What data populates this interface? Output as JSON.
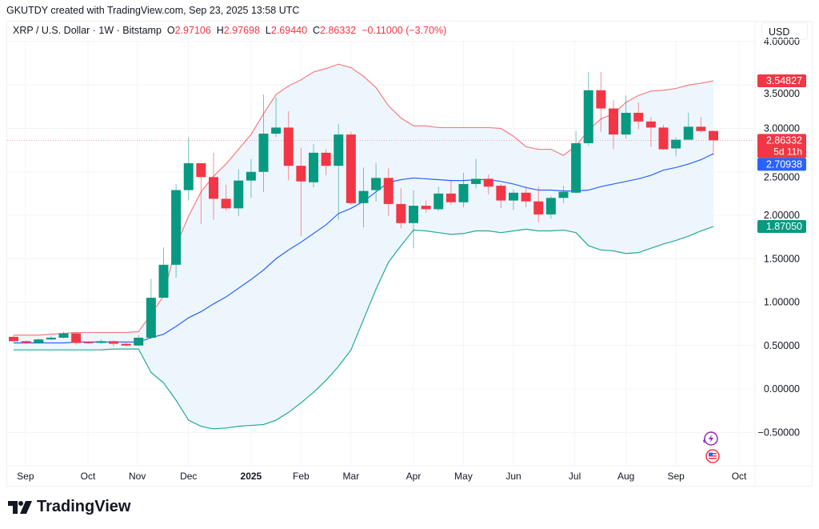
{
  "header": {
    "text": "GKUTDY created with TradingView.com, Sep 23, 2025 13:58 UTC"
  },
  "legend": {
    "symbol": "XRP / U.S. Dollar · 1W · Bitstamp",
    "o_label": "O",
    "o": "2.97106",
    "h_label": "H",
    "h": "2.97698",
    "l_label": "L",
    "l": "2.69440",
    "c_label": "C",
    "c": "2.86332",
    "change": "−0.11000 (−3.70%)"
  },
  "currency_button": "USD",
  "brand": "TradingView",
  "icons": [
    "lightning-event-icon",
    "us-flag-icon"
  ],
  "colors": {
    "up": "#089981",
    "down": "#f23645",
    "upper_band": "#f77c80",
    "basis": "#2962ff",
    "lower_band": "#22ab94",
    "band_fill": "#eef6fd"
  },
  "chart_data": {
    "type": "candlestick",
    "timeframe": "1W",
    "ylim": [
      -0.75,
      4.0
    ],
    "grid": true,
    "y_ticks": [
      {
        "value": 4.0,
        "label": "4.00000"
      },
      {
        "value": 3.5,
        "label": "3.50000"
      },
      {
        "value": 3.0,
        "label": "3.00000"
      },
      {
        "value": 2.5,
        "label": "2.50000"
      },
      {
        "value": 2.0,
        "label": "2.00000"
      },
      {
        "value": 1.5,
        "label": "1.50000"
      },
      {
        "value": 1.0,
        "label": "1.00000"
      },
      {
        "value": 0.5,
        "label": "0.50000"
      },
      {
        "value": 0.0,
        "label": "0.00000"
      },
      {
        "value": -0.5,
        "label": "−0.50000"
      }
    ],
    "x_ticks": [
      {
        "week": 0.95,
        "label": "Sep"
      },
      {
        "week": 5.95,
        "label": "Oct"
      },
      {
        "week": 9.9,
        "label": "Nov"
      },
      {
        "week": 14.0,
        "label": "Dec"
      },
      {
        "week": 19.0,
        "label": "2025",
        "bold": true
      },
      {
        "week": 23.0,
        "label": "Feb"
      },
      {
        "week": 27.0,
        "label": "Mar"
      },
      {
        "week": 32.0,
        "label": "Apr"
      },
      {
        "week": 36.0,
        "label": "May"
      },
      {
        "week": 40.0,
        "label": "Jun"
      },
      {
        "week": 44.9,
        "label": "Jul"
      },
      {
        "week": 49.0,
        "label": "Aug"
      },
      {
        "week": 53.0,
        "label": "Sep"
      },
      {
        "week": 58.05,
        "label": "Oct"
      }
    ],
    "ohlc": [
      [
        0.6,
        0.61,
        0.54,
        0.55
      ],
      [
        0.55,
        0.56,
        0.52,
        0.53
      ],
      [
        0.53,
        0.58,
        0.52,
        0.57
      ],
      [
        0.57,
        0.61,
        0.56,
        0.59
      ],
      [
        0.59,
        0.66,
        0.58,
        0.64
      ],
      [
        0.64,
        0.65,
        0.51,
        0.53
      ],
      [
        0.54,
        0.55,
        0.52,
        0.53
      ],
      [
        0.53,
        0.57,
        0.52,
        0.55
      ],
      [
        0.55,
        0.56,
        0.49,
        0.52
      ],
      [
        0.52,
        0.53,
        0.49,
        0.5
      ],
      [
        0.5,
        0.62,
        0.49,
        0.59
      ],
      [
        0.59,
        1.27,
        0.58,
        1.05
      ],
      [
        1.05,
        1.63,
        1.05,
        1.43
      ],
      [
        1.43,
        2.36,
        1.28,
        2.29
      ],
      [
        2.29,
        2.9,
        2.17,
        2.6
      ],
      [
        2.6,
        2.6,
        1.9,
        2.44
      ],
      [
        2.44,
        2.72,
        1.95,
        2.19
      ],
      [
        2.19,
        2.35,
        2.05,
        2.08
      ],
      [
        2.08,
        2.53,
        1.99,
        2.4
      ],
      [
        2.4,
        2.65,
        2.2,
        2.5
      ],
      [
        2.5,
        3.39,
        2.27,
        2.94
      ],
      [
        2.94,
        3.36,
        2.9,
        3.01
      ],
      [
        3.01,
        3.2,
        2.4,
        2.57
      ],
      [
        2.57,
        2.78,
        1.76,
        2.39
      ],
      [
        2.38,
        2.82,
        2.32,
        2.72
      ],
      [
        2.72,
        2.76,
        2.46,
        2.57
      ],
      [
        2.57,
        3.05,
        1.95,
        2.93
      ],
      [
        2.93,
        2.96,
        2.12,
        2.14
      ],
      [
        2.14,
        2.55,
        1.86,
        2.28
      ],
      [
        2.29,
        2.6,
        2.16,
        2.43
      ],
      [
        2.43,
        2.54,
        1.99,
        2.13
      ],
      [
        2.13,
        2.31,
        1.85,
        1.91
      ],
      [
        1.91,
        2.29,
        1.62,
        2.11
      ],
      [
        2.11,
        2.17,
        2.03,
        2.07
      ],
      [
        2.07,
        2.33,
        2.05,
        2.25
      ],
      [
        2.25,
        2.41,
        2.12,
        2.15
      ],
      [
        2.15,
        2.49,
        2.09,
        2.36
      ],
      [
        2.36,
        2.65,
        2.31,
        2.42
      ],
      [
        2.42,
        2.47,
        2.24,
        2.33
      ],
      [
        2.34,
        2.36,
        2.08,
        2.17
      ],
      [
        2.17,
        2.3,
        2.06,
        2.26
      ],
      [
        2.26,
        2.33,
        2.09,
        2.16
      ],
      [
        2.16,
        2.33,
        1.92,
        2.01
      ],
      [
        2.01,
        2.22,
        1.96,
        2.2
      ],
      [
        2.2,
        2.34,
        2.14,
        2.27
      ],
      [
        2.26,
        2.97,
        2.25,
        2.83
      ],
      [
        2.83,
        3.65,
        2.8,
        3.44
      ],
      [
        3.44,
        3.65,
        2.96,
        3.23
      ],
      [
        3.23,
        3.33,
        2.76,
        2.93
      ],
      [
        2.93,
        3.38,
        2.88,
        3.18
      ],
      [
        3.18,
        3.3,
        2.99,
        3.08
      ],
      [
        3.08,
        3.13,
        2.79,
        3.01
      ],
      [
        3.01,
        3.04,
        2.75,
        2.76
      ],
      [
        2.77,
        2.9,
        2.68,
        2.87
      ],
      [
        2.87,
        3.18,
        2.87,
        3.02
      ],
      [
        3.02,
        3.13,
        2.95,
        2.97
      ],
      [
        2.97106,
        2.97698,
        2.6944,
        2.86332
      ]
    ],
    "bollinger": {
      "upper": [
        0.62,
        0.62,
        0.62,
        0.63,
        0.64,
        0.65,
        0.65,
        0.65,
        0.65,
        0.65,
        0.66,
        0.86,
        1.07,
        1.65,
        1.99,
        2.27,
        2.45,
        2.59,
        2.76,
        2.93,
        3.17,
        3.39,
        3.49,
        3.56,
        3.65,
        3.69,
        3.74,
        3.7,
        3.6,
        3.47,
        3.26,
        3.12,
        3.03,
        3.03,
        3.01,
        3.01,
        3.01,
        3.01,
        3.01,
        3.0,
        2.91,
        2.79,
        2.76,
        2.76,
        2.69,
        2.8,
        2.98,
        3.11,
        3.17,
        3.3,
        3.38,
        3.43,
        3.44,
        3.46,
        3.5,
        3.52,
        3.54827
      ],
      "basis": [
        0.53,
        0.53,
        0.53,
        0.53,
        0.53,
        0.54,
        0.54,
        0.54,
        0.54,
        0.54,
        0.54,
        0.59,
        0.63,
        0.72,
        0.82,
        0.89,
        0.98,
        1.06,
        1.16,
        1.26,
        1.37,
        1.5,
        1.6,
        1.69,
        1.79,
        1.89,
        2.02,
        2.08,
        2.16,
        2.27,
        2.38,
        2.41,
        2.43,
        2.42,
        2.41,
        2.4,
        2.4,
        2.41,
        2.41,
        2.39,
        2.36,
        2.32,
        2.29,
        2.29,
        2.28,
        2.28,
        2.29,
        2.33,
        2.36,
        2.39,
        2.42,
        2.46,
        2.52,
        2.55,
        2.59,
        2.64,
        2.70938
      ],
      "lower": [
        0.45,
        0.45,
        0.45,
        0.45,
        0.45,
        0.45,
        0.45,
        0.45,
        0.46,
        0.46,
        0.46,
        0.19,
        0.07,
        -0.13,
        -0.36,
        -0.43,
        -0.46,
        -0.45,
        -0.43,
        -0.42,
        -0.41,
        -0.36,
        -0.27,
        -0.16,
        -0.04,
        0.1,
        0.26,
        0.45,
        0.8,
        1.15,
        1.46,
        1.65,
        1.83,
        1.82,
        1.8,
        1.78,
        1.79,
        1.82,
        1.82,
        1.8,
        1.82,
        1.84,
        1.82,
        1.82,
        1.83,
        1.8,
        1.65,
        1.6,
        1.59,
        1.56,
        1.57,
        1.62,
        1.67,
        1.71,
        1.76,
        1.82,
        1.8705
      ]
    },
    "price_labels": [
      {
        "name": "upper-band",
        "value": 3.54827,
        "label": "3.54827",
        "color": "#f23645"
      },
      {
        "name": "last-price",
        "value": 2.86332,
        "label": "2.86332",
        "sub": "5d 11h",
        "color": "#f23645"
      },
      {
        "name": "basis",
        "value": 2.70938,
        "label": "2.70938",
        "color": "#2962ff"
      },
      {
        "name": "lower-band",
        "value": 1.8705,
        "label": "1.87050",
        "color": "#089981"
      }
    ]
  }
}
